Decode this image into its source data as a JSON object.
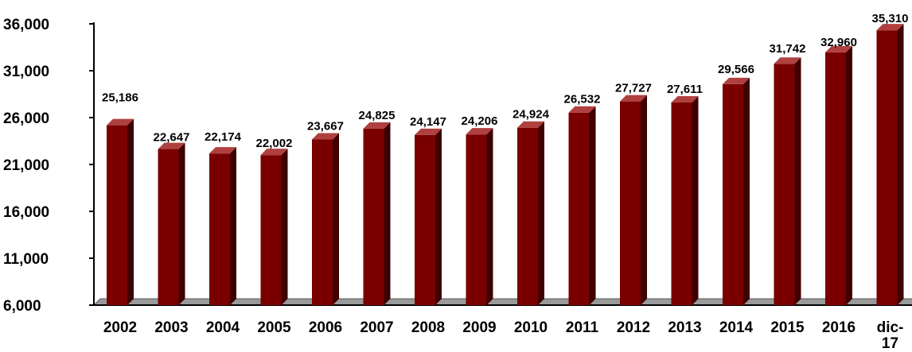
{
  "chart_data": {
    "type": "bar",
    "categories": [
      "2002",
      "2003",
      "2004",
      "2005",
      "2006",
      "2007",
      "2008",
      "2009",
      "2010",
      "2011",
      "2012",
      "2013",
      "2014",
      "2015",
      "2016",
      "dic-17"
    ],
    "values": [
      25186,
      22647,
      22174,
      22002,
      23667,
      24825,
      24147,
      24206,
      24924,
      26532,
      27727,
      27611,
      29566,
      31742,
      32960,
      35310
    ],
    "data_labels": [
      "25,186",
      "22,647",
      "22,174",
      "22,002",
      "23,667",
      "24,825",
      "24,147",
      "24,206",
      "24,924",
      "26,532",
      "27,727",
      "27,611",
      "29,566",
      "31,742",
      "32,960",
      "35,310"
    ],
    "title": "",
    "xlabel": "",
    "ylabel": "",
    "ylim": [
      6000,
      36000
    ],
    "yticks": [
      6000,
      11000,
      16000,
      21000,
      26000,
      31000,
      36000
    ],
    "ytick_labels": [
      "6,000",
      "11,000",
      "16,000",
      "21,000",
      "26,000",
      "31,000",
      "36,000"
    ],
    "grid": false,
    "legend": "none",
    "colors": {
      "bar_front": "#7a0000",
      "bar_side": "#3e0000",
      "bar_top": "#b04040",
      "floor": "#9a9a9a",
      "axis": "#000000"
    }
  }
}
